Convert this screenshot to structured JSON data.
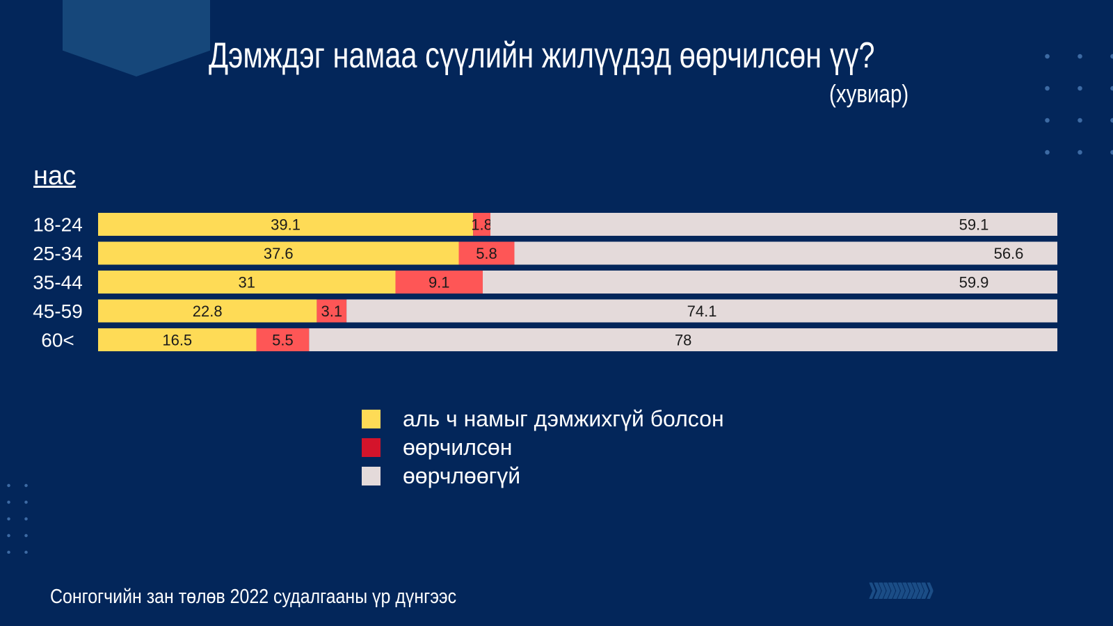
{
  "title": "Дэмждэг намаа сүүлийн жилүүдэд өөрчилсөн үү?",
  "subtitle": "(хувиар)",
  "footer": {
    "source": "Сонгогчийн зан төлөв 2022 судалгааны үр дүнгээс"
  },
  "decorations": {
    "chevrons_icon": "double-chevron-right-icon"
  },
  "chart_data": {
    "type": "bar",
    "orientation": "horizontal",
    "stacked": true,
    "ylabel": "нас",
    "categories": [
      "18-24",
      "25-34",
      "35-44",
      "45-59",
      "60<"
    ],
    "series": [
      {
        "name": "аль ч намыг дэмжихгүй болсон",
        "color": "#fedb56",
        "values": [
          39.1,
          37.6,
          31,
          22.8,
          16.5
        ]
      },
      {
        "name": "өөрчилсөн",
        "color": "#fe5656",
        "legend_color": "#d4142b",
        "values": [
          1.8,
          5.8,
          9.1,
          3.1,
          5.5
        ]
      },
      {
        "name": "өөрчлөөгүй",
        "color": "#e4dada",
        "values": [
          59.1,
          56.6,
          59.9,
          74.1,
          78
        ]
      }
    ],
    "xlim": [
      0,
      100
    ],
    "legend_position": "bottom",
    "grid": false
  }
}
